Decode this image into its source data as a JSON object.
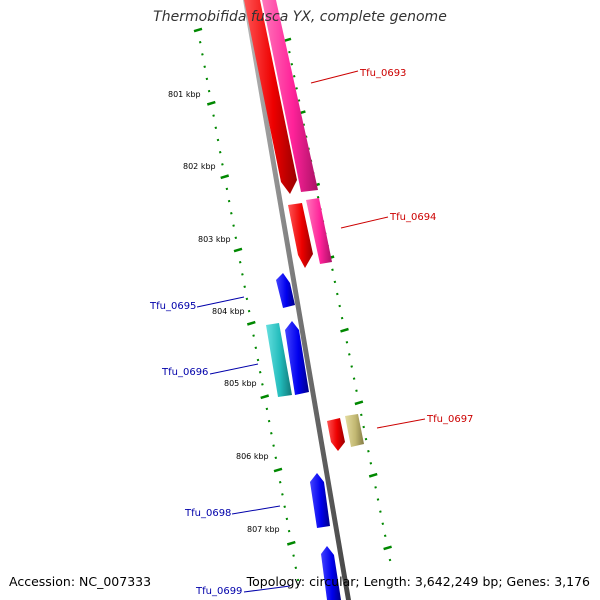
{
  "title": "Thermobifida fusca YX, complete genome",
  "footer": {
    "accession": "Accession: NC_007333",
    "topology": "Topology: circular; Length: 3,642,249 bp; Genes: 3,176"
  },
  "kbp_labels": [
    "801 kbp",
    "802 kbp",
    "803 kbp",
    "804 kbp",
    "805 kbp",
    "806 kbp",
    "807 kbp"
  ],
  "genes": [
    {
      "id": "Tfu_0693",
      "strand": "-",
      "color": "#ff0000",
      "label_color": "#cc0000"
    },
    {
      "id": "Tfu_0694",
      "strand": "-",
      "color": "#ff0000",
      "label_color": "#cc0000"
    },
    {
      "id": "Tfu_0695",
      "strand": "+",
      "color": "#0000ff",
      "label_color": "#0000aa"
    },
    {
      "id": "Tfu_0696",
      "strand": "+",
      "color": "#0000ff",
      "label_color": "#0000aa"
    },
    {
      "id": "Tfu_0697",
      "strand": "-",
      "color": "#ff0000",
      "label_color": "#cc0000"
    },
    {
      "id": "Tfu_0698",
      "strand": "+",
      "color": "#0000ff",
      "label_color": "#0000aa"
    },
    {
      "id": "Tfu_0699",
      "strand": "+",
      "color": "#0000ff",
      "label_color": "#0000aa"
    }
  ],
  "colors": {
    "cds_minus": "#ff0000",
    "cds_plus": "#0000ff",
    "pink_track": "#ff3399",
    "cyan_track": "#33cccc",
    "khaki_track": "#c8c07a",
    "backbone": "#888888",
    "tick_dots": "#008800"
  }
}
